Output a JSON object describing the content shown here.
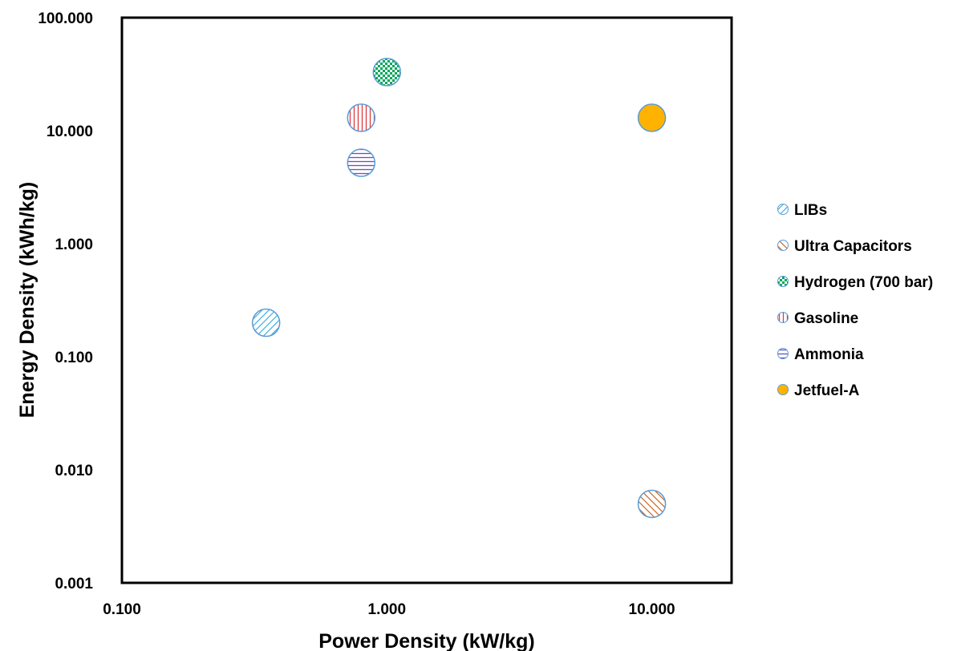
{
  "chart_data": {
    "type": "scatter",
    "title": "",
    "xlabel": "Power Density (kW/kg)",
    "ylabel": "Energy Density (kWh/kg)",
    "x_scale": "log",
    "y_scale": "log",
    "xlim": [
      0.1,
      20
    ],
    "ylim": [
      0.001,
      100
    ],
    "x_ticks": [
      {
        "value": 0.1,
        "label": "0.100"
      },
      {
        "value": 1,
        "label": "1.000"
      },
      {
        "value": 10,
        "label": "10.000"
      }
    ],
    "y_ticks": [
      {
        "value": 0.001,
        "label": "0.001"
      },
      {
        "value": 0.01,
        "label": "0.010"
      },
      {
        "value": 0.1,
        "label": "0.100"
      },
      {
        "value": 1,
        "label": "1.000"
      },
      {
        "value": 10,
        "label": "10.000"
      },
      {
        "value": 100,
        "label": "100.000"
      }
    ],
    "grid": false,
    "legend_position": "right",
    "series": [
      {
        "name": "LIBs",
        "x": [
          0.35
        ],
        "y": [
          0.2
        ],
        "color": "#2ea8e0",
        "pattern": "diagonal-down"
      },
      {
        "name": "Ultra Capacitors",
        "x": [
          10
        ],
        "y": [
          0.005
        ],
        "color": "#c55a11",
        "pattern": "diagonal-up"
      },
      {
        "name": "Hydrogen (700 bar)",
        "x": [
          1
        ],
        "y": [
          33
        ],
        "color": "#00a65a",
        "pattern": "checker"
      },
      {
        "name": "Gasoline",
        "x": [
          0.8
        ],
        "y": [
          13
        ],
        "color": "#e0393e",
        "pattern": "vertical"
      },
      {
        "name": "Ammonia",
        "x": [
          0.8
        ],
        "y": [
          5.2
        ],
        "color": "#6b4fbf",
        "pattern": "horizontal"
      },
      {
        "name": "Jetfuel-A",
        "x": [
          10
        ],
        "y": [
          13
        ],
        "color": "#ffb300",
        "pattern": "solid"
      }
    ]
  }
}
